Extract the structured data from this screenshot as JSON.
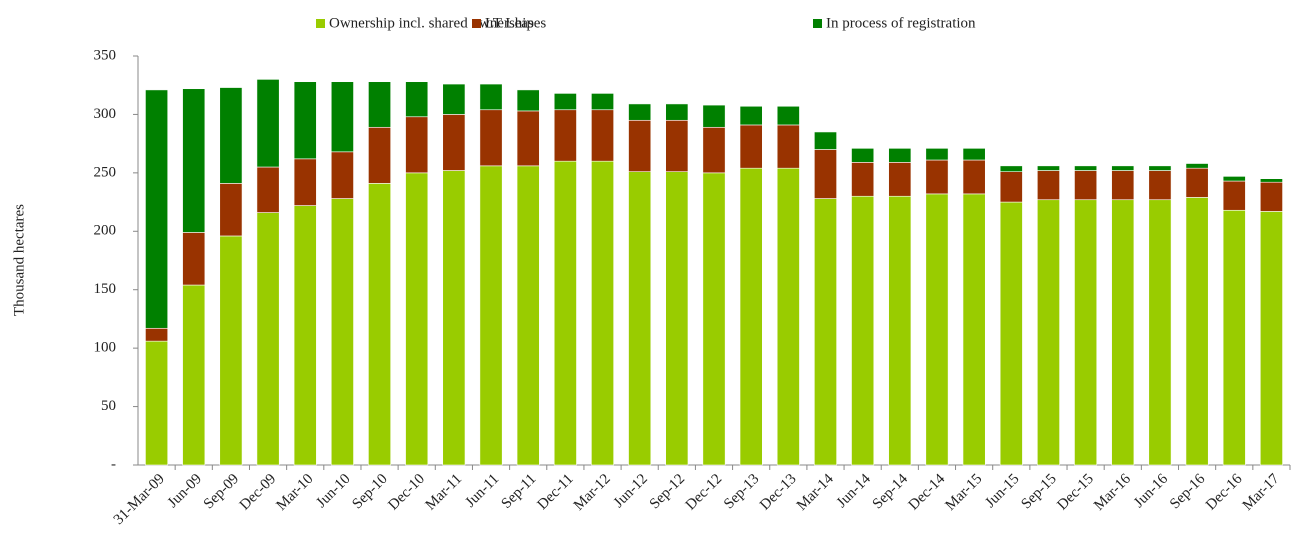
{
  "chart_data": {
    "type": "stacked_bar",
    "y_label": "Thousand hectares",
    "categories": [
      "31-Mar-09",
      "Jun-09",
      "Sep-09",
      "Dec-09",
      "Mar-10",
      "Jun-10",
      "Sep-10",
      "Dec-10",
      "Mar-11",
      "Jun-11",
      "Sep-11",
      "Dec-11",
      "Mar-12",
      "Jun-12",
      "Sep-12",
      "Dec-12",
      "Sep-13",
      "Dec-13",
      "Mar-14",
      "Jun-14",
      "Sep-14",
      "Dec-14",
      "Mar-15",
      "Jun-15",
      "Sep-15",
      "Dec-15",
      "Mar-16",
      "Jun-16",
      "Sep-16",
      "Dec-16",
      "Mar-17"
    ],
    "series": [
      {
        "name": "Ownership incl. shared ownership",
        "color": "#99cc00",
        "values": [
          106,
          154,
          196,
          216,
          222,
          228,
          241,
          250,
          252,
          256,
          256,
          260,
          260,
          251,
          251,
          250,
          254,
          254,
          228,
          230,
          230,
          232,
          232,
          225,
          227,
          227,
          227,
          227,
          229,
          218,
          217
        ]
      },
      {
        "name": "LT Leases",
        "color": "#993300",
        "values": [
          11,
          45,
          45,
          39,
          40,
          40,
          48,
          48,
          48,
          48,
          47,
          44,
          44,
          44,
          44,
          39,
          37,
          37,
          42,
          29,
          29,
          29,
          29,
          26,
          25,
          25,
          25,
          25,
          25,
          25,
          25
        ]
      },
      {
        "name": "In process of registration",
        "color": "#008000",
        "values": [
          204,
          123,
          82,
          75,
          66,
          60,
          39,
          30,
          26,
          22,
          18,
          14,
          14,
          14,
          14,
          19,
          16,
          16,
          15,
          12,
          12,
          10,
          10,
          5,
          4,
          4,
          4,
          4,
          4,
          4,
          3
        ]
      }
    ],
    "ylim": [
      0,
      350
    ],
    "yticks": [
      {
        "value": 0,
        "label": "-"
      },
      50,
      100,
      150,
      200,
      250,
      300,
      350
    ],
    "legend": "top"
  }
}
